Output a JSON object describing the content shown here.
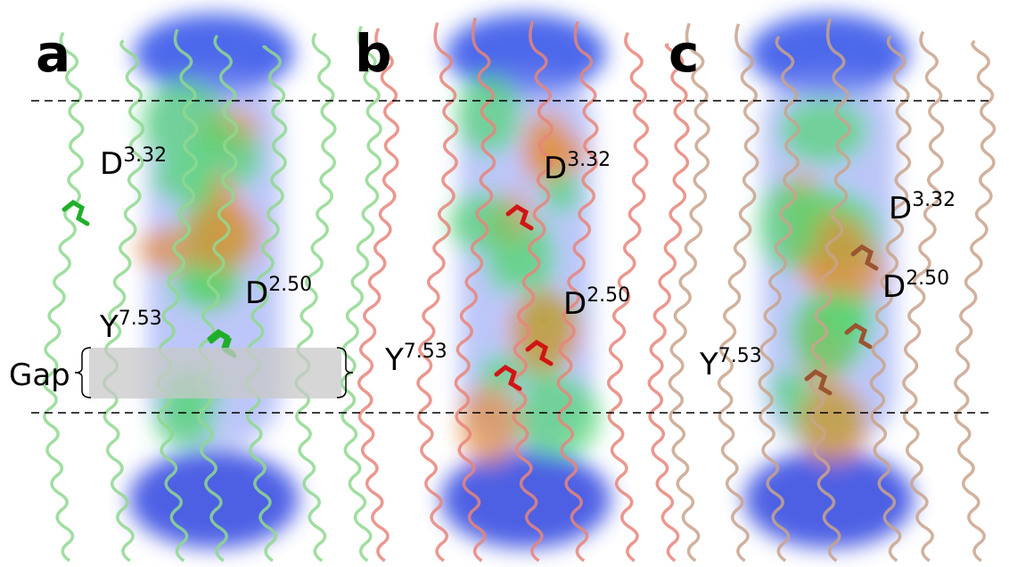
{
  "panels": [
    {
      "label": "a",
      "residues": [
        {
          "name": "D",
          "superscript": "3.32"
        },
        {
          "name": "D",
          "superscript": "2.50"
        },
        {
          "name": "Y",
          "superscript": "7.53"
        }
      ],
      "gap": "Gap"
    },
    {
      "label": "b",
      "residues": [
        {
          "name": "D",
          "superscript": "3.32"
        },
        {
          "name": "D",
          "superscript": "2.50"
        },
        {
          "name": "Y",
          "superscript": "7.53"
        }
      ]
    },
    {
      "label": "c",
      "residues": [
        {
          "name": "D",
          "superscript": "3.32"
        },
        {
          "name": "D",
          "superscript": "2.50"
        },
        {
          "name": "Y",
          "superscript": "7.53"
        }
      ]
    }
  ]
}
